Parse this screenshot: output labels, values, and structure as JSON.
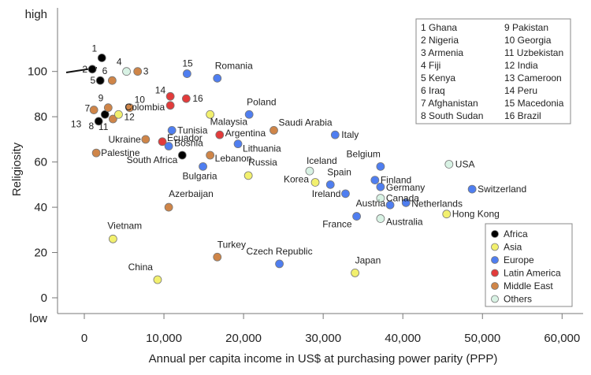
{
  "colors": {
    "Africa": "#000000",
    "Asia": "#f2f06e",
    "Europe": "#4f7ef0",
    "Latin America": "#e23b3b",
    "Middle East": "#cf8548",
    "Others": "#d8f2e4"
  },
  "chart_data": {
    "type": "scatter",
    "xlabel": "Annual per capita income in US$ at purchasing power parity (PPP)",
    "ylabel": "Religiosity",
    "xlim": [
      -3000,
      62000
    ],
    "ylim": [
      -8,
      108
    ],
    "x_ticks": [
      {
        "value": 0,
        "label": "0"
      },
      {
        "value": 10000,
        "label": "10,000"
      },
      {
        "value": 20000,
        "label": "20,000"
      },
      {
        "value": 30000,
        "label": "30,000"
      },
      {
        "value": 40000,
        "label": "40,000"
      },
      {
        "value": 50000,
        "label": "50,000"
      },
      {
        "value": 60000,
        "label": "60,000"
      }
    ],
    "y_ticks": [
      {
        "value": 0,
        "label": "0"
      },
      {
        "value": 20,
        "label": "20"
      },
      {
        "value": 40,
        "label": "40"
      },
      {
        "value": 60,
        "label": "60"
      },
      {
        "value": 80,
        "label": "80"
      },
      {
        "value": 100,
        "label": "100"
      }
    ],
    "y_end_labels": {
      "high": "high",
      "low": "low"
    },
    "legend_position": "bottom-right",
    "legend": [
      "Africa",
      "Asia",
      "Europe",
      "Latin America",
      "Middle East",
      "Others"
    ],
    "key_position": "top-right",
    "key_list": [
      "1 Ghana",
      "2 Nigeria",
      "3 Armenia",
      "4 Fiji",
      "5 Kenya",
      "6 Iraq",
      "7 Afghanistan",
      "8 South Sudan",
      "9 Pakistan",
      "10 Georgia",
      "11 Uzbekistan",
      "12 India",
      "13 Cameroon",
      "14 Peru",
      "15 Macedonia",
      "16 Brazil"
    ],
    "points": [
      {
        "label": "1",
        "x": 2200,
        "y": 106,
        "group": "Africa"
      },
      {
        "label": "2",
        "x": 1000,
        "y": 101,
        "group": "Africa"
      },
      {
        "label": "5",
        "x": 2000,
        "y": 96,
        "group": "Africa"
      },
      {
        "label": "8",
        "x": 1800,
        "y": 78,
        "group": "Africa"
      },
      {
        "label": "13",
        "x": 2600,
        "y": 81,
        "group": "Africa"
      },
      {
        "label": "South Africa",
        "x": 12300,
        "y": 63,
        "group": "Africa"
      },
      {
        "label": "3",
        "x": 6700,
        "y": 100,
        "group": "Middle East"
      },
      {
        "label": "6",
        "x": 3500,
        "y": 96,
        "group": "Middle East"
      },
      {
        "label": "7",
        "x": 1200,
        "y": 83,
        "group": "Middle East"
      },
      {
        "label": "9",
        "x": 3000,
        "y": 84,
        "group": "Middle East"
      },
      {
        "label": "10",
        "x": 5700,
        "y": 84,
        "group": "Middle East"
      },
      {
        "label": "11",
        "x": 3600,
        "y": 79,
        "group": "Middle East"
      },
      {
        "label": "Ukraine",
        "x": 7700,
        "y": 70,
        "group": "Middle East"
      },
      {
        "label": "Palestine",
        "x": 1500,
        "y": 64,
        "group": "Middle East"
      },
      {
        "label": "Lebanon",
        "x": 15800,
        "y": 63,
        "group": "Middle East"
      },
      {
        "label": "Azerbaijan",
        "x": 10600,
        "y": 40,
        "group": "Middle East"
      },
      {
        "label": "Turkey",
        "x": 16700,
        "y": 18,
        "group": "Middle East"
      },
      {
        "label": "Saudi Arabia",
        "x": 23800,
        "y": 74,
        "group": "Middle East"
      },
      {
        "label": "4",
        "x": 5300,
        "y": 100,
        "group": "Others"
      },
      {
        "label": "Iceland",
        "x": 28300,
        "y": 56,
        "group": "Others"
      },
      {
        "label": "Canada",
        "x": 37200,
        "y": 44,
        "group": "Others"
      },
      {
        "label": "Australia",
        "x": 37200,
        "y": 35,
        "group": "Others"
      },
      {
        "label": "USA",
        "x": 45800,
        "y": 59,
        "group": "Others"
      },
      {
        "label": "12",
        "x": 4300,
        "y": 81,
        "group": "Asia"
      },
      {
        "label": "Malaysia",
        "x": 15800,
        "y": 81,
        "group": "Asia"
      },
      {
        "label": "Russia",
        "x": 20600,
        "y": 54,
        "group": "Asia"
      },
      {
        "label": "Korea",
        "x": 29000,
        "y": 51,
        "group": "Asia"
      },
      {
        "label": "Hong Kong",
        "x": 45500,
        "y": 37,
        "group": "Asia"
      },
      {
        "label": "Vietnam",
        "x": 3600,
        "y": 26,
        "group": "Asia"
      },
      {
        "label": "China",
        "x": 9200,
        "y": 8,
        "group": "Asia"
      },
      {
        "label": "Japan",
        "x": 34000,
        "y": 11,
        "group": "Asia"
      },
      {
        "label": "14",
        "x": 10800,
        "y": 89,
        "group": "Latin America"
      },
      {
        "label": "16",
        "x": 12800,
        "y": 88,
        "group": "Latin America"
      },
      {
        "label": "Colombia",
        "x": 10800,
        "y": 85,
        "group": "Latin America"
      },
      {
        "label": "Ecuador",
        "x": 9800,
        "y": 69,
        "group": "Latin America"
      },
      {
        "label": "Argentina",
        "x": 17000,
        "y": 72,
        "group": "Latin America"
      },
      {
        "label": "15",
        "x": 12900,
        "y": 99,
        "group": "Europe"
      },
      {
        "label": "Romania",
        "x": 16700,
        "y": 97,
        "group": "Europe"
      },
      {
        "label": "Poland",
        "x": 20700,
        "y": 81,
        "group": "Europe"
      },
      {
        "label": "Tunisia",
        "x": 11000,
        "y": 74,
        "group": "Europe"
      },
      {
        "label": "Bosnia",
        "x": 10600,
        "y": 67,
        "group": "Europe"
      },
      {
        "label": "Lithuania",
        "x": 19300,
        "y": 68,
        "group": "Europe"
      },
      {
        "label": "Bulgaria",
        "x": 14900,
        "y": 58,
        "group": "Europe"
      },
      {
        "label": "Italy",
        "x": 31500,
        "y": 72,
        "group": "Europe"
      },
      {
        "label": "Belgium",
        "x": 37200,
        "y": 58,
        "group": "Europe"
      },
      {
        "label": "Finland",
        "x": 36500,
        "y": 52,
        "group": "Europe"
      },
      {
        "label": "Germany",
        "x": 37200,
        "y": 49,
        "group": "Europe"
      },
      {
        "label": "Spain",
        "x": 30900,
        "y": 50,
        "group": "Europe"
      },
      {
        "label": "Ireland",
        "x": 32800,
        "y": 46,
        "group": "Europe"
      },
      {
        "label": "Switzerland",
        "x": 48700,
        "y": 48,
        "group": "Europe"
      },
      {
        "label": "Netherlands",
        "x": 40400,
        "y": 42,
        "group": "Europe"
      },
      {
        "label": "Austria",
        "x": 38400,
        "y": 41,
        "group": "Europe"
      },
      {
        "label": "France",
        "x": 34200,
        "y": 36,
        "group": "Europe"
      },
      {
        "label": "Czech Republic",
        "x": 24500,
        "y": 15,
        "group": "Europe"
      }
    ]
  }
}
